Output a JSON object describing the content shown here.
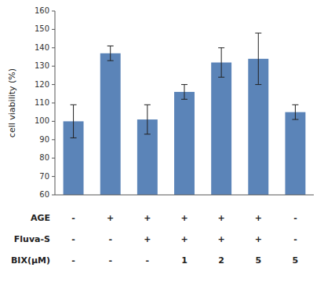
{
  "chart_data": {
    "type": "bar",
    "ylabel": "cell viability (%)",
    "categories": [
      null,
      null,
      null,
      null,
      null,
      null,
      null
    ],
    "values": [
      100,
      137,
      101,
      116,
      132,
      134,
      105
    ],
    "errors": [
      9,
      4,
      8,
      4,
      8,
      14,
      4
    ],
    "color": "#5b84b8",
    "ylim": [
      60,
      160
    ],
    "yticks": [
      60,
      70,
      80,
      90,
      100,
      110,
      120,
      130,
      140,
      150,
      160
    ],
    "grid": false,
    "tick_labels": "y",
    "table": {
      "rows": [
        {
          "label": "AGE",
          "values": [
            "-",
            "+",
            "+",
            "+",
            "+",
            "+",
            "-"
          ]
        },
        {
          "label": "Fluva-S",
          "values": [
            "-",
            "-",
            "+",
            "+",
            "+",
            "+",
            "-"
          ]
        },
        {
          "label": "BIX(μM)",
          "values": [
            "-",
            "-",
            "-",
            "1",
            "2",
            "5",
            "5"
          ]
        }
      ]
    }
  }
}
